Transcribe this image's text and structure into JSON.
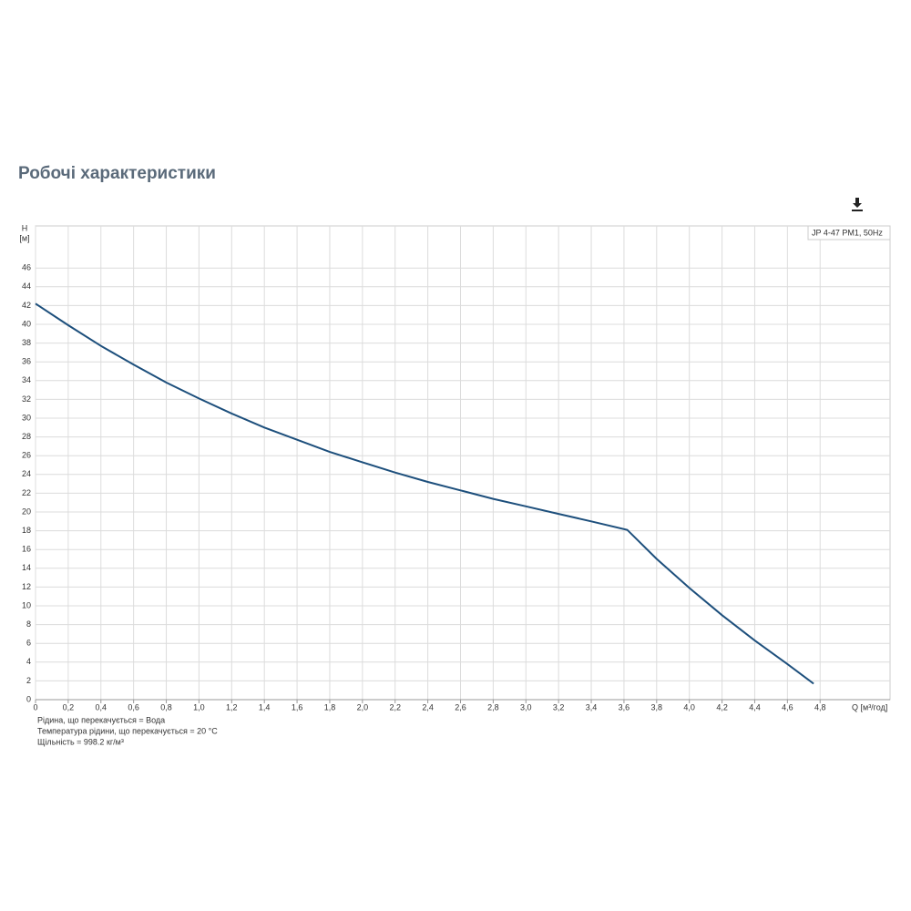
{
  "chart_data": {
    "type": "line",
    "title": "Робочі характеристики",
    "xlabel": "Q [м³/год]",
    "ylabel": "H",
    "yunit": "[м]",
    "x": [
      0,
      0.2,
      0.4,
      0.6,
      0.8,
      1.0,
      1.2,
      1.4,
      1.6,
      1.8,
      2.0,
      2.2,
      2.4,
      2.6,
      2.8,
      3.0,
      3.2,
      3.4,
      3.62,
      3.8,
      4.0,
      4.2,
      4.4,
      4.6,
      4.76
    ],
    "series": [
      {
        "name": "JP 4-47 PM1, 50Hz",
        "color": "#1d4f7c",
        "values": [
          42.2,
          39.9,
          37.7,
          35.7,
          33.8,
          32.1,
          30.5,
          29.0,
          27.7,
          26.4,
          25.3,
          24.2,
          23.2,
          22.3,
          21.4,
          20.6,
          19.8,
          19.0,
          18.1,
          15.0,
          11.9,
          9.0,
          6.3,
          3.8,
          1.7
        ]
      }
    ],
    "xlim": [
      0,
      5.2
    ],
    "ylim": [
      0,
      50
    ],
    "xticks": [
      0,
      {
        "value": 0.2,
        "label": "0,2"
      },
      {
        "value": 0.4,
        "label": "0,4"
      },
      {
        "value": 0.6,
        "label": "0,6"
      },
      {
        "value": 0.8,
        "label": "0,8"
      },
      {
        "value": 1.0,
        "label": "1,0"
      },
      {
        "value": 1.2,
        "label": "1,2"
      },
      {
        "value": 1.4,
        "label": "1,4"
      },
      {
        "value": 1.6,
        "label": "1,6"
      },
      {
        "value": 1.8,
        "label": "1,8"
      },
      {
        "value": 2.0,
        "label": "2,0"
      },
      {
        "value": 2.2,
        "label": "2,2"
      },
      {
        "value": 2.4,
        "label": "2,4"
      },
      {
        "value": 2.6,
        "label": "2,6"
      },
      {
        "value": 2.8,
        "label": "2,8"
      },
      {
        "value": 3.0,
        "label": "3,0"
      },
      {
        "value": 3.2,
        "label": "3,2"
      },
      {
        "value": 3.4,
        "label": "3,4"
      },
      {
        "value": 3.6,
        "label": "3,6"
      },
      {
        "value": 3.8,
        "label": "3,8"
      },
      {
        "value": 4.0,
        "label": "4,0"
      },
      {
        "value": 4.2,
        "label": "4,2"
      },
      {
        "value": 4.4,
        "label": "4,4"
      },
      {
        "value": 4.6,
        "label": "4,6"
      },
      {
        "value": 4.8,
        "label": "4,8"
      }
    ],
    "yticks": [
      0,
      2,
      4,
      6,
      8,
      10,
      12,
      14,
      16,
      18,
      20,
      22,
      24,
      26,
      28,
      30,
      32,
      34,
      36,
      38,
      40,
      42,
      44,
      46
    ],
    "grid": true,
    "notes": [
      "Рідина, що перекачується = Вода",
      "Температура рідини, що перекачується = 20 °C",
      "Щільність = 998.2 кг/м³"
    ]
  }
}
